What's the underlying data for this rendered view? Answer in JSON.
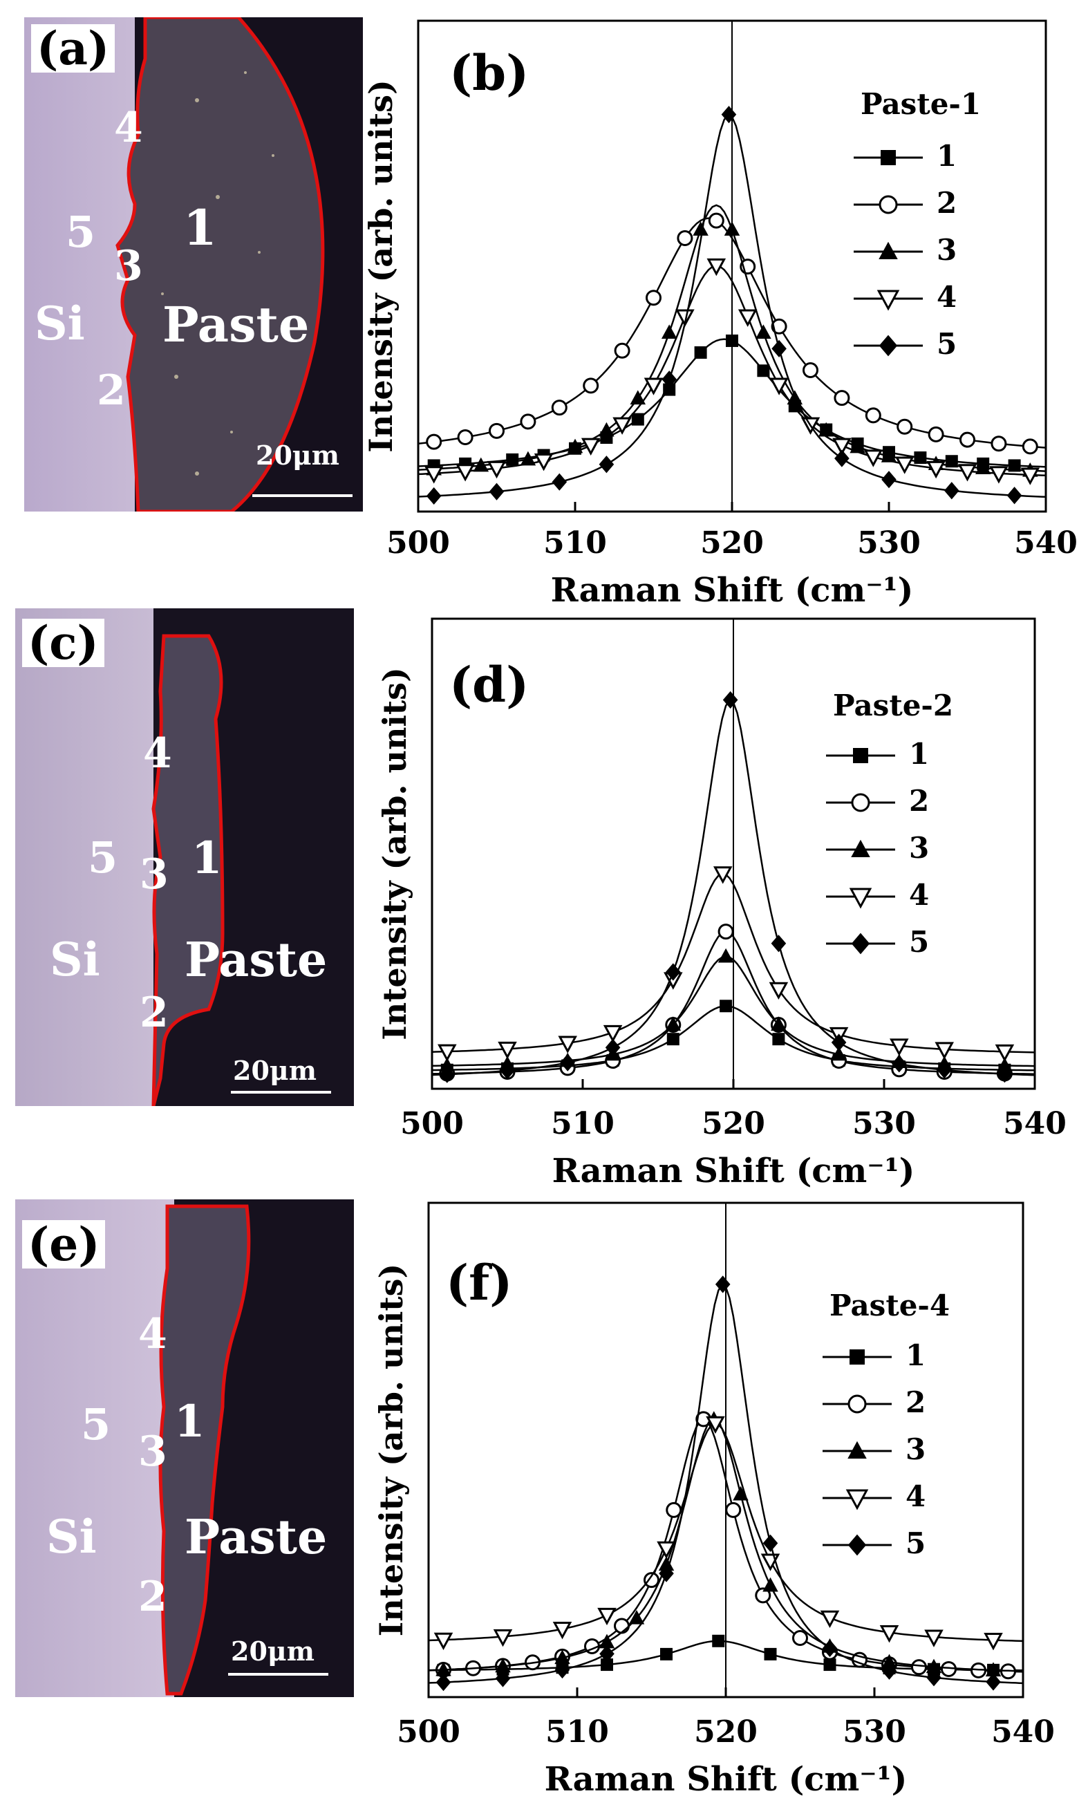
{
  "micrographs": [
    {
      "label": "(a)",
      "scale_bar": "20μm",
      "region_si": "Si",
      "region_paste": "Paste",
      "points": [
        "1",
        "2",
        "3",
        "4",
        "5"
      ]
    },
    {
      "label": "(c)",
      "scale_bar": "20μm",
      "region_si": "Si",
      "region_paste": "Paste",
      "points": [
        "1",
        "2",
        "3",
        "4",
        "5"
      ]
    },
    {
      "label": "(e)",
      "scale_bar": "20μm",
      "region_si": "Si",
      "region_paste": "Paste",
      "points": [
        "1",
        "2",
        "3",
        "4",
        "5"
      ]
    }
  ],
  "colors": {
    "si_bg": "#cfc2d9",
    "paste_bg": "#3a3040",
    "dark_bg": "#1c1628",
    "boundary": "#e01010",
    "line": "#000000"
  },
  "chart_data": [
    {
      "type": "line",
      "panel": "(b)",
      "title": "Paste-1",
      "xlabel": "Raman Shift (cm⁻¹)",
      "ylabel": "Intensity (arb. units)",
      "xlim": [
        500,
        540
      ],
      "ylim": [
        0,
        100
      ],
      "xticks": [
        500,
        510,
        520,
        530,
        540
      ],
      "reference_line_x": 520,
      "series": [
        {
          "name": "1",
          "marker": "filled-square",
          "center": 519.5,
          "gamma": 4.5,
          "amp": 31,
          "base": 7,
          "x": [
            501,
            503,
            506,
            508,
            510,
            512,
            514,
            516,
            518,
            520,
            522,
            524,
            526,
            528,
            530,
            532,
            534,
            536,
            538
          ]
        },
        {
          "name": "2",
          "marker": "open-circle",
          "center": 518.5,
          "gamma": 5.0,
          "amp": 56,
          "base": 10,
          "x": [
            501,
            503,
            505,
            507,
            509,
            511,
            513,
            515,
            517,
            519,
            521,
            523,
            525,
            527,
            529,
            531,
            533,
            535,
            537,
            539
          ]
        },
        {
          "name": "3",
          "marker": "filled-triangle",
          "center": 519,
          "gamma": 3.2,
          "amp": 63,
          "base": 6,
          "x": [
            501,
            504,
            507,
            510,
            512,
            514,
            516,
            518,
            520,
            522,
            524,
            526,
            528,
            530,
            533,
            536,
            539
          ]
        },
        {
          "name": "4",
          "marker": "open-down-triangle",
          "center": 519,
          "gamma": 3.6,
          "amp": 50,
          "base": 5,
          "x": [
            501,
            503,
            505,
            508,
            511,
            513,
            515,
            517,
            519,
            521,
            523,
            525,
            527,
            529,
            531,
            533,
            535,
            537,
            539
          ]
        },
        {
          "name": "5",
          "marker": "filled-diamond",
          "center": 519.8,
          "gamma": 2.6,
          "amp": 90,
          "base": 0,
          "x": [
            501,
            505,
            509,
            512,
            516,
            519.8,
            523,
            527,
            530,
            534,
            538
          ]
        }
      ]
    },
    {
      "type": "line",
      "panel": "(d)",
      "title": "Paste-2",
      "xlabel": "Raman Shift (cm⁻¹)",
      "ylabel": "Intensity (arb. units)",
      "xlim": [
        500,
        540
      ],
      "ylim": [
        0,
        100
      ],
      "xticks": [
        500,
        510,
        520,
        530,
        540
      ],
      "reference_line_x": 520,
      "series": [
        {
          "name": "1",
          "marker": "filled-square",
          "center": 519.5,
          "gamma": 3.5,
          "amp": 16,
          "base": 2,
          "x": [
            501,
            505,
            509,
            512,
            516,
            519.5,
            523,
            527,
            531,
            534,
            538
          ]
        },
        {
          "name": "2",
          "marker": "open-circle",
          "center": 519.5,
          "gamma": 2.6,
          "amp": 35,
          "base": 1,
          "x": [
            501,
            505,
            509,
            512,
            516,
            519.5,
            523,
            527,
            531,
            534,
            538
          ]
        },
        {
          "name": "3",
          "marker": "filled-triangle",
          "center": 519.5,
          "gamma": 2.8,
          "amp": 27,
          "base": 3,
          "x": [
            501,
            505,
            509,
            512,
            516,
            519.5,
            523,
            527,
            531,
            534,
            538
          ]
        },
        {
          "name": "4",
          "marker": "open-down-triangle",
          "center": 519.3,
          "gamma": 2.8,
          "amp": 44,
          "base": 6,
          "x": [
            501,
            505,
            509,
            512,
            516,
            519.3,
            523,
            527,
            531,
            534,
            538
          ]
        },
        {
          "name": "5",
          "marker": "filled-diamond",
          "center": 519.8,
          "gamma": 2.4,
          "amp": 92,
          "base": 0,
          "x": [
            501,
            505,
            509,
            512,
            516,
            519.8,
            523,
            527,
            531,
            534,
            538
          ]
        }
      ]
    },
    {
      "type": "line",
      "panel": "(f)",
      "title": "Paste-4",
      "xlabel": "Raman Shift (cm⁻¹)",
      "ylabel": "Intensity (arb. units)",
      "xlim": [
        500,
        540
      ],
      "ylim": [
        0,
        100
      ],
      "xticks": [
        500,
        510,
        520,
        530,
        540
      ],
      "reference_line_x": 520,
      "series": [
        {
          "name": "1",
          "marker": "filled-square",
          "center": 519.5,
          "gamma": 4.0,
          "amp": 7,
          "base": 4,
          "x": [
            501,
            505,
            509,
            512,
            516,
            519.5,
            523,
            527,
            531,
            534,
            538
          ]
        },
        {
          "name": "2",
          "marker": "open-circle",
          "center": 518.5,
          "gamma": 2.7,
          "amp": 59,
          "base": 3,
          "x": [
            501,
            503,
            505,
            507,
            509,
            511,
            513,
            515,
            516.5,
            518.5,
            520.5,
            522.5,
            525,
            527,
            529,
            531,
            533,
            535,
            537,
            539
          ]
        },
        {
          "name": "3",
          "marker": "filled-triangle",
          "center": 519.2,
          "gamma": 2.8,
          "amp": 59,
          "base": 3,
          "x": [
            501,
            505,
            509,
            512,
            514,
            516,
            519.2,
            521,
            523,
            527,
            531,
            534,
            538
          ]
        },
        {
          "name": "4",
          "marker": "open-down-triangle",
          "center": 519.3,
          "gamma": 2.9,
          "amp": 51,
          "base": 10,
          "x": [
            501,
            505,
            509,
            512,
            516,
            519.3,
            523,
            527,
            531,
            534,
            538
          ]
        },
        {
          "name": "5",
          "marker": "filled-diamond",
          "center": 519.8,
          "gamma": 2.4,
          "amp": 93,
          "base": 0,
          "x": [
            501,
            505,
            509,
            512,
            516,
            519.8,
            523,
            527,
            531,
            534,
            538
          ]
        }
      ]
    }
  ]
}
